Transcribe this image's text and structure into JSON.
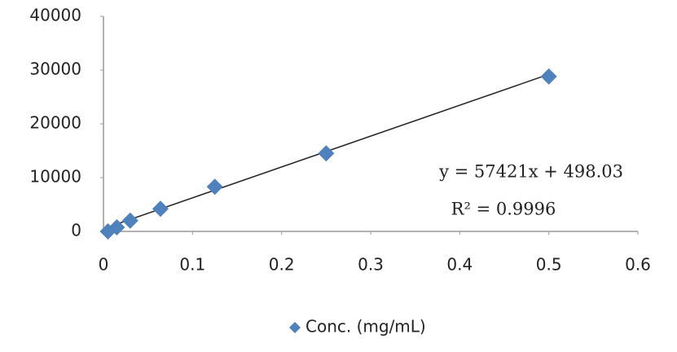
{
  "chart_data": {
    "type": "scatter",
    "x": [
      0.005,
      0.015,
      0.03,
      0.064,
      0.125,
      0.25,
      0.5
    ],
    "series": [
      {
        "name": "Conc. (mg/mL)",
        "color": "#4f81bd",
        "values": [
          0,
          760,
          2000,
          4200,
          8300,
          14500,
          28800
        ]
      }
    ],
    "xlim": [
      0,
      0.6
    ],
    "xticks": [
      0,
      0.1,
      0.2,
      0.3,
      0.4,
      0.5,
      0.6
    ],
    "ylim": [
      0,
      40000
    ],
    "yticks": [
      0,
      10000,
      20000,
      30000,
      40000
    ],
    "grid": false,
    "legend": "bottom",
    "trendline": {
      "slope": 57421,
      "intercept": 498.03,
      "color": "#222222",
      "equation": "y = 57421x + 498.03",
      "r_squared": "R² = 0.9996"
    }
  }
}
